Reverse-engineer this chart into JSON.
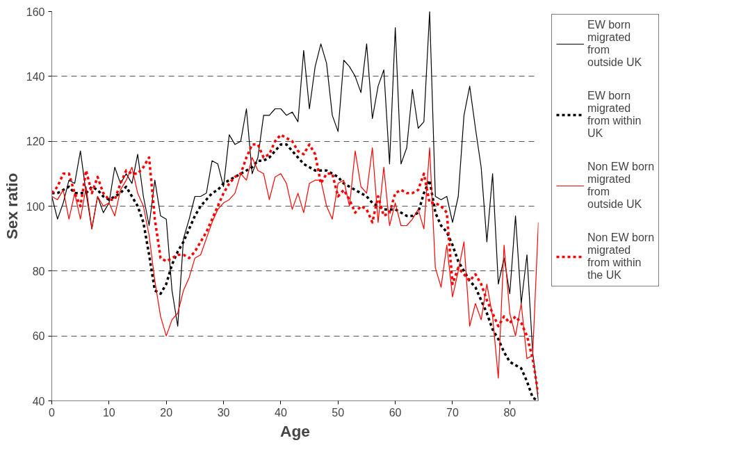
{
  "chart_data": {
    "type": "line",
    "xlabel": "Age",
    "ylabel": "Sex ratio",
    "x": [
      0,
      1,
      2,
      3,
      4,
      5,
      6,
      7,
      8,
      9,
      10,
      11,
      12,
      13,
      14,
      15,
      16,
      17,
      18,
      19,
      20,
      21,
      22,
      23,
      24,
      25,
      26,
      27,
      28,
      29,
      30,
      31,
      32,
      33,
      34,
      35,
      36,
      37,
      38,
      39,
      40,
      41,
      42,
      43,
      44,
      45,
      46,
      47,
      48,
      49,
      50,
      51,
      52,
      53,
      54,
      55,
      56,
      57,
      58,
      59,
      60,
      61,
      62,
      63,
      64,
      65,
      66,
      67,
      68,
      69,
      70,
      71,
      72,
      73,
      74,
      75,
      76,
      77,
      78,
      79,
      80,
      81,
      82,
      83,
      84,
      85
    ],
    "xlim": [
      0,
      85
    ],
    "xticks": [
      0,
      10,
      20,
      30,
      40,
      50,
      60,
      70,
      80
    ],
    "ylim": [
      40,
      160
    ],
    "yticks": [
      40,
      60,
      80,
      100,
      120,
      140,
      160
    ],
    "grid": "y",
    "legend": "right",
    "marker": "none",
    "series": [
      {
        "name": "EW born migrated from outside UK",
        "color": "#000000",
        "line_style": "solid",
        "values": [
          103,
          96,
          101,
          108,
          107,
          117,
          104,
          93,
          103,
          98,
          101,
          112,
          107,
          110,
          107,
          116,
          103,
          94,
          108,
          97,
          96,
          74,
          63,
          90,
          96,
          103,
          103,
          104,
          114,
          113,
          106,
          122,
          119,
          120,
          130,
          110,
          115,
          128,
          128,
          130,
          130,
          128,
          129,
          126,
          148,
          130,
          143,
          150,
          144,
          128,
          123,
          145,
          143,
          140,
          135,
          150,
          127,
          137,
          142,
          113,
          155,
          113,
          118,
          136,
          124,
          126,
          160,
          103,
          102,
          103,
          95,
          103,
          128,
          137,
          124,
          112,
          89,
          110,
          76,
          84,
          73,
          97,
          70,
          85,
          55,
          40
        ]
      },
      {
        "name": "EW born migrated from within UK",
        "color": "#000000",
        "line_style": "dotted",
        "values": [
          104,
          104,
          105,
          106,
          104,
          104,
          104,
          106,
          105,
          103,
          102,
          103,
          104,
          106,
          103,
          100,
          95,
          85,
          74,
          73,
          76,
          82,
          86,
          89,
          93,
          97,
          100,
          102,
          104,
          105,
          107,
          108,
          109,
          110,
          111,
          112,
          114,
          114,
          115,
          117,
          119,
          119,
          117,
          115,
          113,
          112,
          111,
          111,
          111,
          110,
          109,
          107,
          106,
          105,
          104,
          103,
          101,
          100,
          99,
          99,
          99,
          98,
          97,
          97,
          98,
          104,
          108,
          98,
          94,
          92,
          88,
          83,
          80,
          77,
          75,
          71,
          67,
          62,
          59,
          55,
          52,
          51,
          50,
          46,
          41,
          40
        ]
      },
      {
        "name": "Non EW born migrated from outside UK",
        "color": "#ff0000",
        "line_style": "solid",
        "values": [
          103,
          102,
          105,
          96,
          104,
          96,
          106,
          93,
          103,
          100,
          101,
          97,
          105,
          108,
          112,
          104,
          100,
          91,
          77,
          66,
          60,
          65,
          67,
          74,
          78,
          84,
          85,
          90,
          95,
          99,
          101,
          102,
          104,
          110,
          108,
          115,
          111,
          110,
          102,
          109,
          110,
          107,
          99,
          104,
          98,
          107,
          108,
          108,
          100,
          96,
          107,
          108,
          100,
          117,
          106,
          104,
          118,
          95,
          112,
          94,
          101,
          94,
          94,
          96,
          99,
          93,
          118,
          81,
          75,
          88,
          72,
          80,
          89,
          63,
          70,
          65,
          76,
          66,
          47,
          88,
          67,
          60,
          70,
          53,
          54,
          95
        ]
      },
      {
        "name": "Non EW born migrated from within the UK",
        "color": "#ff0000",
        "line_style": "dotted",
        "values": [
          104,
          106,
          110,
          110,
          104,
          100,
          111,
          104,
          109,
          104,
          102,
          102,
          107,
          111,
          110,
          110,
          112,
          115,
          96,
          84,
          83,
          84,
          85,
          85,
          84,
          86,
          89,
          92,
          96,
          100,
          104,
          107,
          109,
          110,
          115,
          119,
          119,
          115,
          116,
          120,
          122,
          121,
          120,
          117,
          116,
          119,
          116,
          107,
          110,
          110,
          103,
          105,
          102,
          98,
          100,
          99,
          95,
          103,
          97,
          98,
          104,
          105,
          104,
          104,
          105,
          110,
          101,
          101,
          100,
          98,
          76,
          81,
          79,
          77,
          79,
          76,
          71,
          67,
          63,
          66,
          64,
          66,
          64,
          60,
          53,
          42
        ]
      }
    ]
  }
}
